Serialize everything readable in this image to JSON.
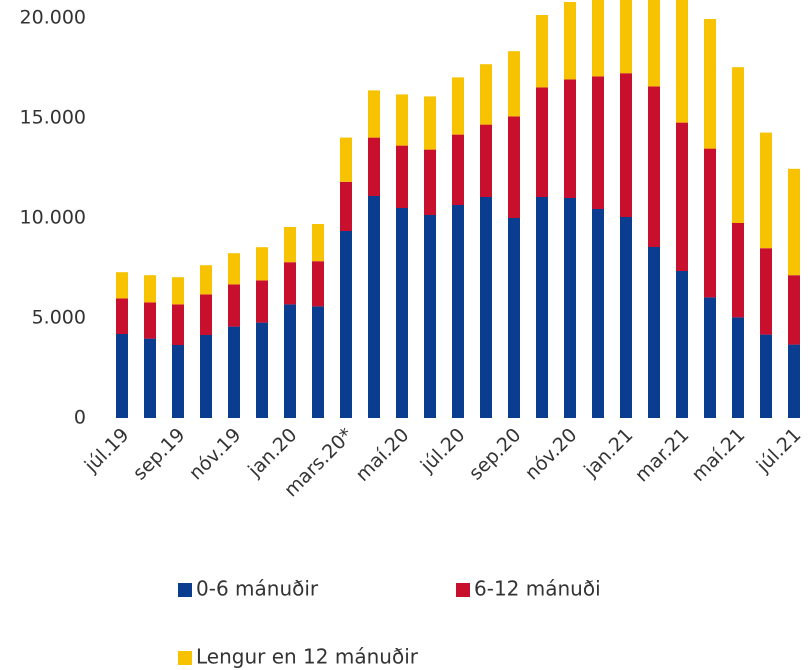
{
  "chart_data": {
    "type": "stacked_bar",
    "categories": [
      "júl.19",
      null,
      "sep.19",
      null,
      "nóv.19",
      null,
      "jan.20",
      null,
      "mars.20*",
      null,
      "maí.20",
      null,
      "júl.20",
      null,
      "sep.20",
      null,
      "nóv.20",
      null,
      "jan.21",
      null,
      "mar.21",
      null,
      "maí.21",
      null,
      "júl.21"
    ],
    "series": [
      {
        "name": "0-6 mánuðir",
        "color": "#0a3d8f",
        "values": [
          4200,
          3970,
          3650,
          4150,
          4570,
          4770,
          5680,
          5580,
          9350,
          11100,
          10500,
          10150,
          10650,
          11050,
          10000,
          11050,
          11000,
          10450,
          10050,
          8550,
          7350,
          6030,
          5030,
          4170,
          3670
        ]
      },
      {
        "name": "6-12 mánuði",
        "color": "#c8102e",
        "values": [
          1780,
          1810,
          2030,
          2030,
          2110,
          2110,
          2110,
          2260,
          2460,
          2920,
          3120,
          3270,
          3520,
          3620,
          5080,
          5480,
          5930,
          6630,
          7190,
          8030,
          7420,
          7440,
          4720,
          4320,
          3470
        ]
      },
      {
        "name": "Lengur en 12 mánuðir",
        "color": "#f7c300",
        "values": [
          1310,
          1360,
          1360,
          1460,
          1560,
          1660,
          1760,
          1860,
          2210,
          2360,
          2560,
          2660,
          2860,
          3020,
          3260,
          3620,
          3870,
          3870,
          3710,
          4600,
          6400,
          6480,
          7790,
          5780,
          5320
        ]
      }
    ],
    "ylim": [
      0,
      21000
    ],
    "yticks": [
      {
        "value": 0,
        "label": "0"
      },
      {
        "value": 5000,
        "label": "5.000"
      },
      {
        "value": 10000,
        "label": "10.000"
      },
      {
        "value": 15000,
        "label": "15.000"
      },
      {
        "value": 20000,
        "label": "20.000"
      }
    ],
    "grid": false
  }
}
